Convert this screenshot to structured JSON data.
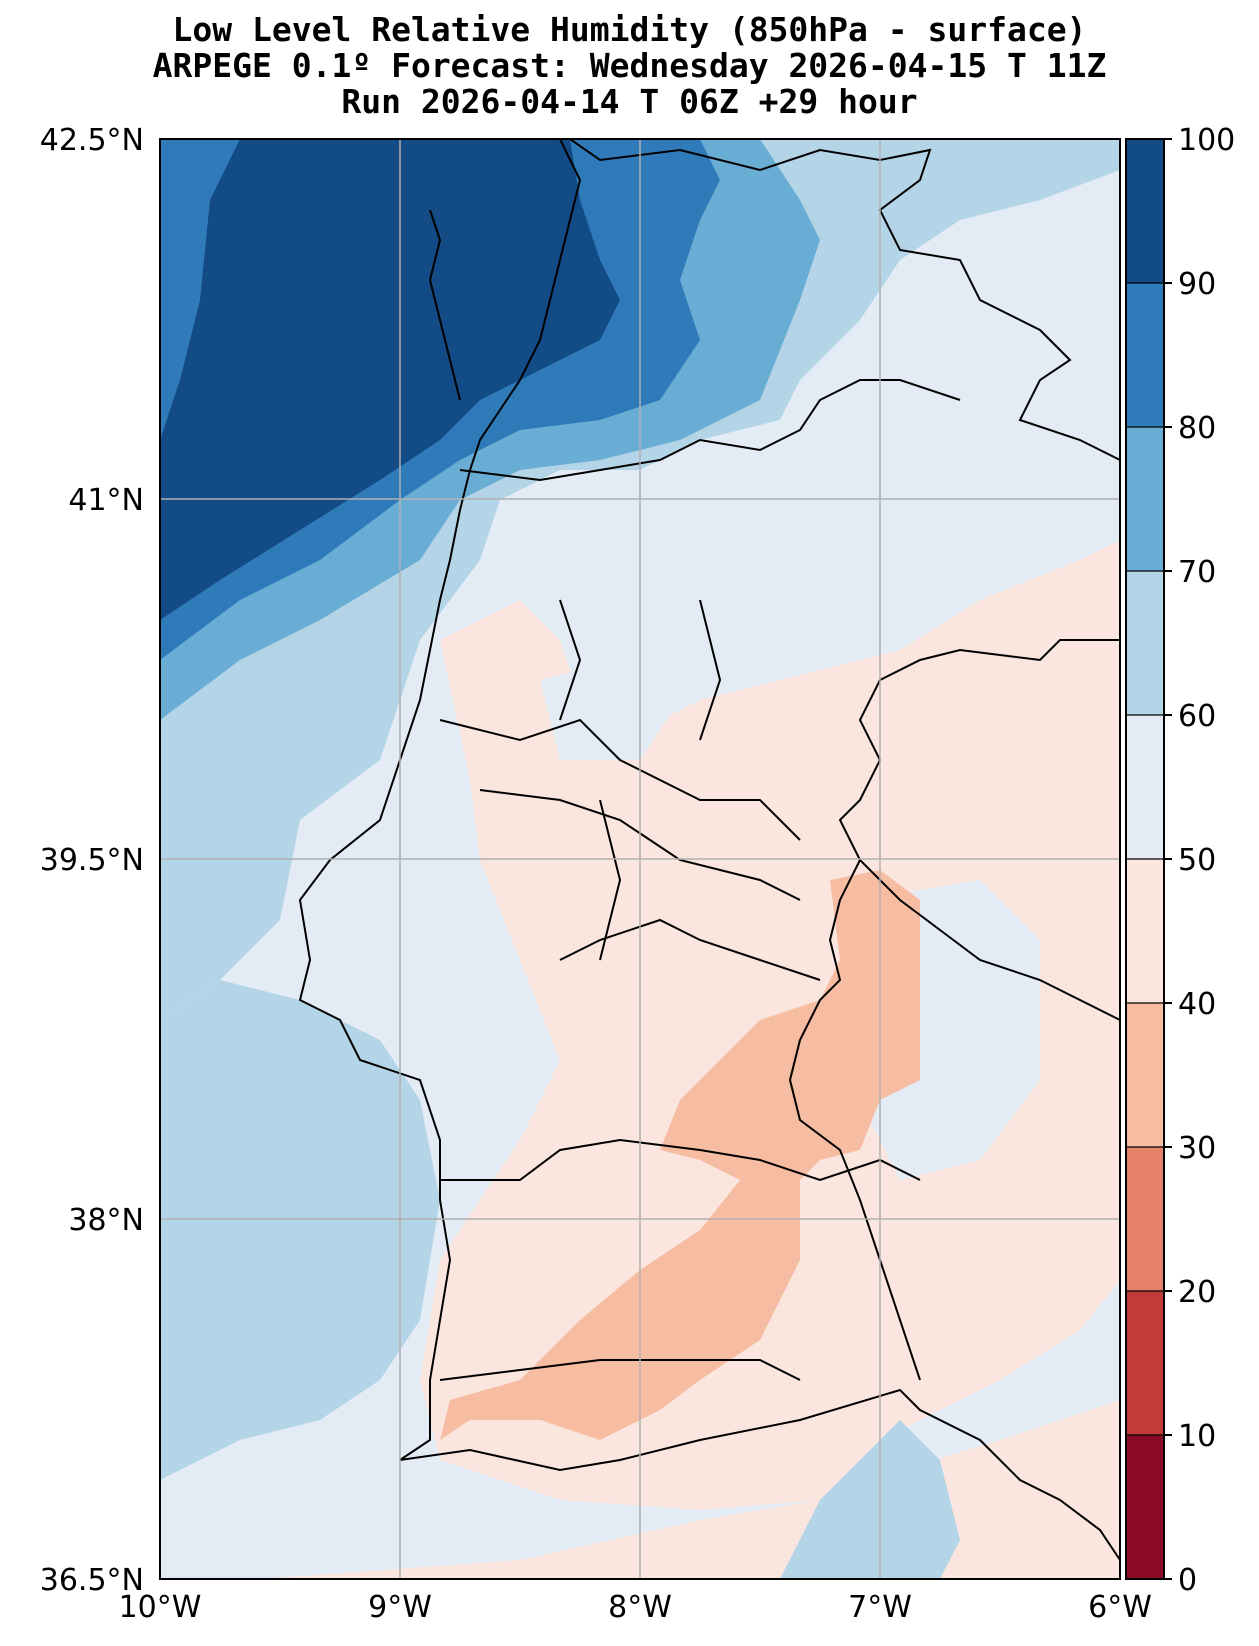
{
  "title": {
    "line1": "Low Level Relative Humidity (850hPa - surface)",
    "line2": "ARPEGE 0.1º Forecast: Wednesday 2026-04-15 T 11Z",
    "line3": "Run 2026-04-14 T 06Z +29 hour"
  },
  "map": {
    "lon_range": [
      -10,
      -6
    ],
    "lat_range": [
      36.5,
      42.5
    ],
    "lon_ticks": [
      {
        "value": -10,
        "label": "10°W"
      },
      {
        "value": -9,
        "label": "9°W"
      },
      {
        "value": -8,
        "label": "8°W"
      },
      {
        "value": -7,
        "label": "7°W"
      },
      {
        "value": -6,
        "label": "6°W"
      }
    ],
    "lat_ticks": [
      {
        "value": 42.5,
        "label": "42.5°N"
      },
      {
        "value": 41,
        "label": "41°N"
      },
      {
        "value": 39.5,
        "label": "39.5°N"
      },
      {
        "value": 38,
        "label": "38°N"
      },
      {
        "value": 36.5,
        "label": "36.5°N"
      }
    ],
    "gridlines": true
  },
  "colorbar": {
    "range": [
      0,
      100
    ],
    "bounds": [
      0,
      10,
      20,
      30,
      40,
      50,
      60,
      70,
      80,
      90,
      100
    ],
    "colors": [
      "#8b0b24",
      "#c13b3b",
      "#e6826a",
      "#f7bda3",
      "#fae6de",
      "#e3ecf4",
      "#b4d5e7",
      "#6aadd4",
      "#2f7ab9",
      "#134b86"
    ],
    "tick_labels": [
      "0",
      "10",
      "20",
      "30",
      "40",
      "50",
      "60",
      "70",
      "80",
      "90",
      "100"
    ]
  }
}
